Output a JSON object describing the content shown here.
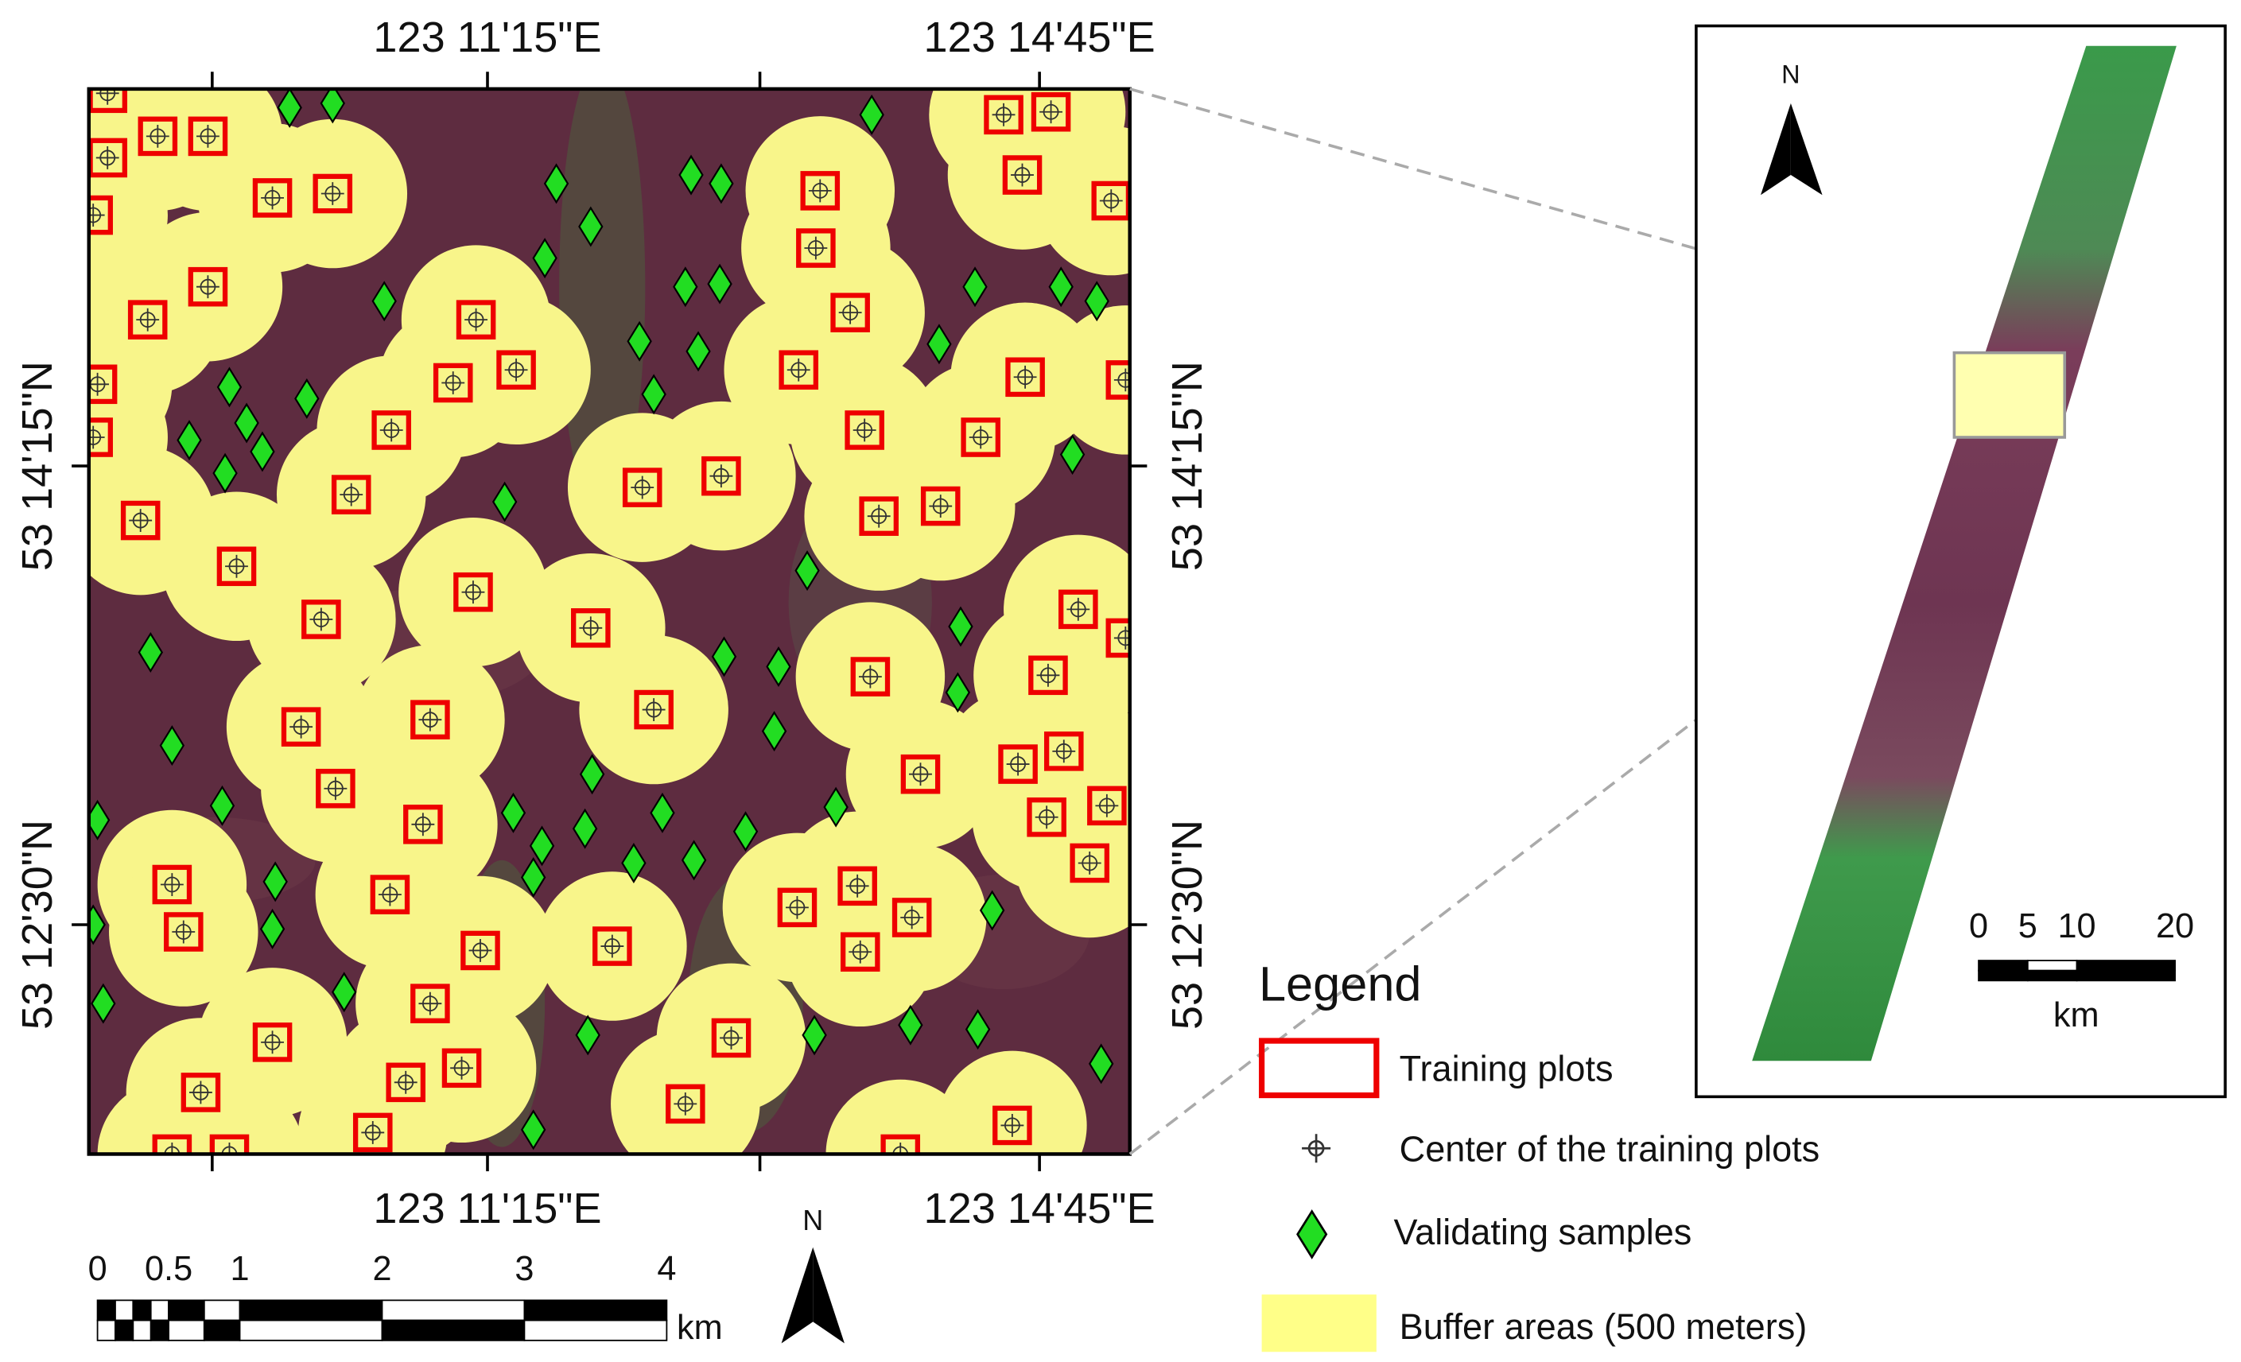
{
  "map": {
    "x_labels": [
      "123  11'15\"E",
      "123  14'45\"E"
    ],
    "y_labels": [
      "53  14'15\"N",
      "53  12'30\"N"
    ],
    "north": "N",
    "scale_bar": {
      "ticks": [
        "0",
        "0.5",
        "1",
        "2",
        "3",
        "4"
      ],
      "unit": "km"
    }
  },
  "inset": {
    "north": "N",
    "scale_bar": {
      "ticks": [
        "0",
        "5",
        "10",
        "20"
      ],
      "unit": "km"
    }
  },
  "legend": {
    "title": "Legend",
    "items": [
      "Training plots",
      "Center of the training plots",
      "Validating samples",
      "Buffer areas (500 meters)"
    ]
  }
}
